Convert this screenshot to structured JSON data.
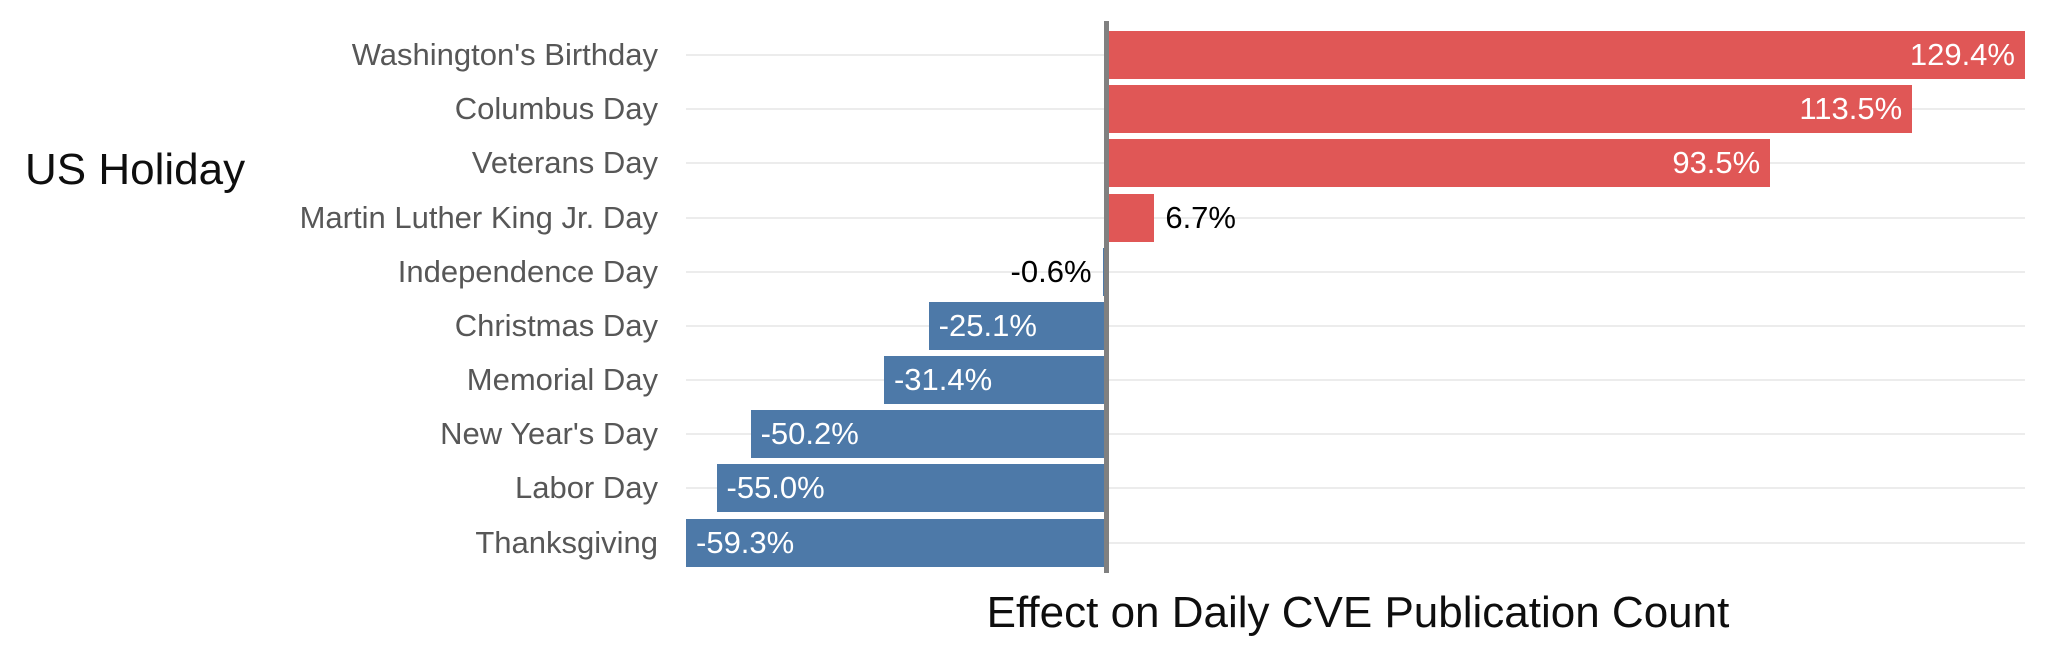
{
  "chart_data": {
    "type": "bar",
    "orientation": "horizontal",
    "title": "",
    "xlabel": "Effect on Daily CVE Publication Count",
    "ylabel": "US Holiday",
    "categories": [
      "Washington's Birthday",
      "Columbus Day",
      "Veterans Day",
      "Martin Luther King Jr. Day",
      "Independence Day",
      "Christmas Day",
      "Memorial Day",
      "New Year's Day",
      "Labor Day",
      "Thanksgiving"
    ],
    "values": [
      129.4,
      113.5,
      93.5,
      6.7,
      -0.6,
      -25.1,
      -31.4,
      -50.2,
      -55.0,
      -59.3
    ],
    "value_labels": [
      "129.4%",
      "113.5%",
      "93.5%",
      "6.7%",
      "-0.6%",
      "-25.1%",
      "-31.4%",
      "-50.2%",
      "-55.0%",
      "-59.3%"
    ],
    "xlim": [
      -59.3,
      129.4
    ],
    "grid": "horizontal-row-lines-only",
    "legend": "none",
    "colors": {
      "positive_bar": "#e05756",
      "negative_bar": "#4d79a8",
      "label_inside_bar": "#ffffff",
      "label_outside_bar": "#000000",
      "gridline": "#ececec",
      "zero_axis_line": "#808080",
      "category_label": "#575757",
      "axis_title": "#0e0e0e",
      "background": "#ffffff"
    }
  }
}
